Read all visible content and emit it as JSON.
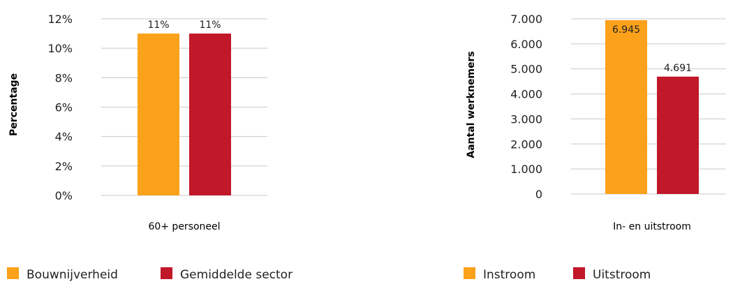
{
  "colors": {
    "orange": "#FBA11A",
    "red": "#C1182A",
    "grid": "#c8c8c8",
    "text": "#222222"
  },
  "chart_data": [
    {
      "type": "bar",
      "categories": [
        "60+ personeel"
      ],
      "series": [
        {
          "name": "Bouwnijverheid",
          "values": [
            11
          ],
          "data_labels": [
            "11%"
          ],
          "color": "#FBA11A"
        },
        {
          "name": "Gemiddelde sector",
          "values": [
            11
          ],
          "data_labels": [
            "11%"
          ],
          "color": "#C1182A"
        }
      ],
      "ylabel": "Percentage",
      "ylim": [
        0,
        12
      ],
      "yticks": [
        0,
        2,
        4,
        6,
        8,
        10,
        12
      ],
      "ytick_labels": [
        "0%",
        "2%",
        "4%",
        "6%",
        "8%",
        "10%",
        "12%"
      ],
      "grid": true,
      "legend": "bottom-left"
    },
    {
      "type": "bar",
      "categories": [
        "In- en uitstroom"
      ],
      "series": [
        {
          "name": "Instroom",
          "values": [
            6945
          ],
          "data_labels": [
            "6.945"
          ],
          "color": "#FBA11A"
        },
        {
          "name": "Uitstroom",
          "values": [
            4691
          ],
          "data_labels": [
            "4.691"
          ],
          "color": "#C1182A"
        }
      ],
      "ylabel": "Aantal werknemers",
      "ylim": [
        0,
        7000
      ],
      "yticks": [
        0,
        1000,
        2000,
        3000,
        4000,
        5000,
        6000,
        7000
      ],
      "ytick_labels": [
        "0",
        "1.000",
        "2.000",
        "3.000",
        "4.000",
        "5.000",
        "6.000",
        "7.000"
      ],
      "grid": true,
      "legend": "bottom-left"
    }
  ]
}
